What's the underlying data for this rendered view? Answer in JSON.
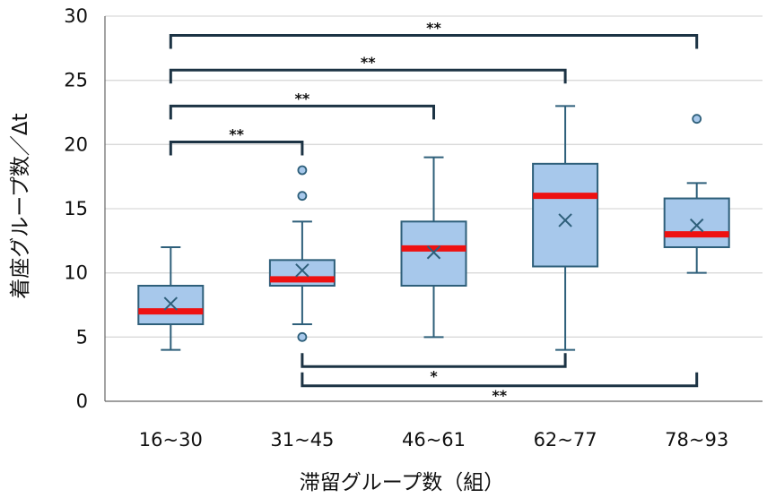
{
  "chart_data": {
    "type": "box",
    "title": "",
    "xlabel": "滞留グループ数（組）",
    "ylabel": "着座グループ数／Δt",
    "ylim": [
      0,
      30
    ],
    "yticks": [
      0,
      5,
      10,
      15,
      20,
      25,
      30
    ],
    "grid": true,
    "categories": [
      "16~30",
      "31~45",
      "46~61",
      "62~77",
      "78~93"
    ],
    "boxes": [
      {
        "category": "16~30",
        "min": 4,
        "q1": 6,
        "median": 7,
        "q3": 9,
        "max": 12,
        "mean": 7.6,
        "outliers": []
      },
      {
        "category": "31~45",
        "min": 6,
        "q1": 9,
        "median": 9.5,
        "q3": 11,
        "max": 14,
        "mean": 10.2,
        "outliers": [
          5,
          16,
          18
        ]
      },
      {
        "category": "46~61",
        "min": 5,
        "q1": 9,
        "median": 11.9,
        "q3": 14,
        "max": 19,
        "mean": 11.6,
        "outliers": []
      },
      {
        "category": "62~77",
        "min": 4,
        "q1": 10.5,
        "median": 16,
        "q3": 18.5,
        "max": 23,
        "mean": 14.1,
        "outliers": []
      },
      {
        "category": "78~93",
        "min": 10,
        "q1": 12,
        "median": 13,
        "q3": 15.8,
        "max": 17,
        "mean": 13.7,
        "outliers": [
          22
        ]
      }
    ],
    "colors": {
      "box_fill": "#a7c8eb",
      "box_stroke": "#2e5f7a",
      "median": "#ee1111",
      "grid": "#d9d9d9",
      "axis": "#666666",
      "bracket": "#1c3344"
    },
    "significance": [
      {
        "from": "16~30",
        "to": "78~93",
        "label": "**",
        "level": 28.5,
        "direction": "down"
      },
      {
        "from": "16~30",
        "to": "62~77",
        "label": "**",
        "level": 25.8,
        "direction": "down"
      },
      {
        "from": "16~30",
        "to": "46~61",
        "label": "**",
        "level": 23.0,
        "direction": "down"
      },
      {
        "from": "16~30",
        "to": "31~45",
        "label": "**",
        "level": 20.2,
        "direction": "down"
      },
      {
        "from": "31~45",
        "to": "62~77",
        "label": "*",
        "level": 2.7,
        "direction": "up"
      },
      {
        "from": "31~45",
        "to": "78~93",
        "label": "**",
        "level": 1.2,
        "direction": "up"
      }
    ]
  }
}
